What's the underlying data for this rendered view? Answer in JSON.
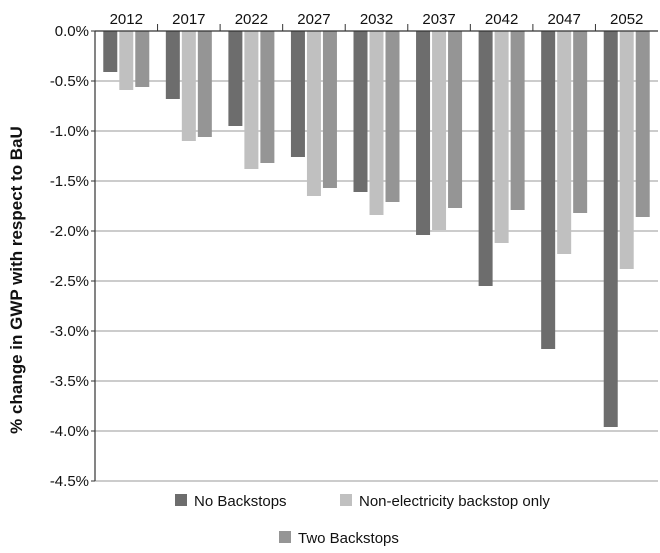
{
  "chart_data": {
    "type": "bar",
    "title": "",
    "xlabel": "",
    "ylabel": "% change in GWP with respect to BaU",
    "categories": [
      "2012",
      "2017",
      "2022",
      "2027",
      "2032",
      "2037",
      "2042",
      "2047",
      "2052"
    ],
    "series": [
      {
        "name": "No Backstops",
        "color": "#6d6d6d",
        "values": [
          -0.41,
          -0.68,
          -0.95,
          -1.26,
          -1.61,
          -2.04,
          -2.55,
          -3.18,
          -3.96
        ]
      },
      {
        "name": "Non-electricity backstop only",
        "color": "#c0c0c0",
        "values": [
          -0.59,
          -1.1,
          -1.38,
          -1.65,
          -1.84,
          -1.99,
          -2.12,
          -2.23,
          -2.38
        ]
      },
      {
        "name": "Two Backstops",
        "color": "#959595",
        "values": [
          -0.56,
          -1.06,
          -1.32,
          -1.57,
          -1.71,
          -1.77,
          -1.79,
          -1.82,
          -1.86
        ]
      }
    ],
    "ylim": [
      -4.5,
      0.0
    ],
    "yticks": [
      0.0,
      -0.5,
      -1.0,
      -1.5,
      -2.0,
      -2.5,
      -3.0,
      -3.5,
      -4.0,
      -4.5
    ],
    "ytick_labels": [
      "0.0%",
      "-0.5%",
      "-1.0%",
      "-1.5%",
      "-2.0%",
      "-2.5%",
      "-3.0%",
      "-3.5%",
      "-4.0%",
      "-4.5%"
    ],
    "category_axis_position": "top",
    "grid": "horizontal",
    "legend": "bottom"
  }
}
